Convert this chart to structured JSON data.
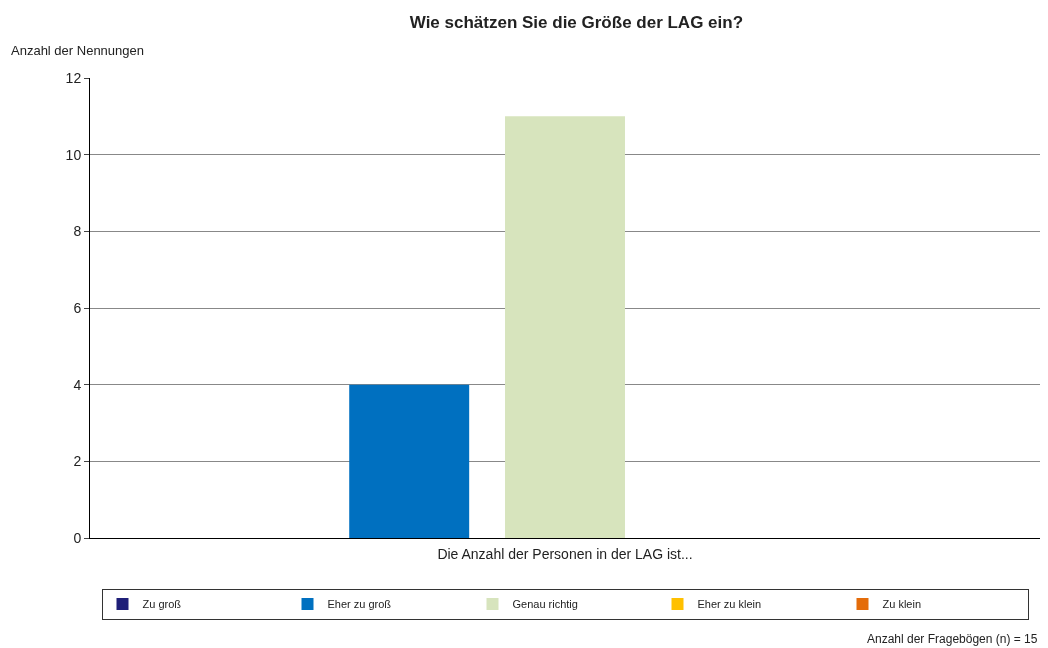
{
  "chart_data": {
    "type": "bar",
    "title": "Wie schätzen Sie die Größe der LAG ein?",
    "xlabel": "Die Anzahl der Personen in der LAG ist...",
    "ylabel": "Anzahl der Nennungen",
    "categories": [
      null
    ],
    "series": [
      {
        "name": "Zu groß",
        "color": "#1f1f78",
        "values": [
          0
        ]
      },
      {
        "name": "Eher zu groß",
        "color": "#0070c0",
        "values": [
          4
        ]
      },
      {
        "name": "Genau richtig",
        "color": "#d7e4bd",
        "values": [
          11
        ]
      },
      {
        "name": "Eher zu klein",
        "color": "#ffc000",
        "values": [
          0
        ]
      },
      {
        "name": "Zu klein",
        "color": "#e46c0a",
        "values": [
          0
        ]
      }
    ],
    "ylim": [
      0,
      12
    ],
    "yticks": [
      0,
      2,
      4,
      6,
      8,
      10,
      12
    ],
    "grid": "y",
    "legend": "bottom",
    "annotations": [
      "Anzahl der Fragebögen (n) = 15"
    ]
  }
}
